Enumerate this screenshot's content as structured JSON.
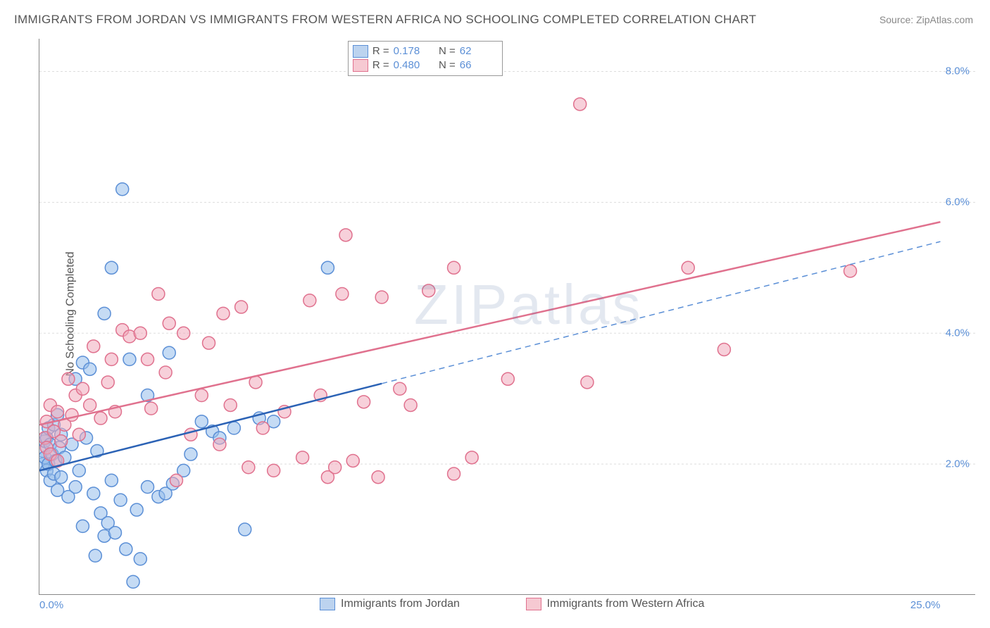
{
  "title": "IMMIGRANTS FROM JORDAN VS IMMIGRANTS FROM WESTERN AFRICA NO SCHOOLING COMPLETED CORRELATION CHART",
  "source_prefix": "Source: ",
  "source": "ZipAtlas.com",
  "ylabel": "No Schooling Completed",
  "watermark": "ZIPatlas",
  "chart": {
    "type": "scatter",
    "xlim": [
      0,
      25
    ],
    "ylim": [
      0,
      8.5
    ],
    "x_domain_coverage": 0.962,
    "xtick_values": [
      0,
      25
    ],
    "xtick_labels": [
      "0.0%",
      "25.0%"
    ],
    "ytick_values": [
      2,
      4,
      6,
      8
    ],
    "ytick_labels": [
      "2.0%",
      "4.0%",
      "6.0%",
      "8.0%"
    ],
    "grid_color": "#dddddd",
    "grid_dash": "3,3",
    "legend_top": {
      "rows": [
        {
          "swatch_fill": "#bcd3ef",
          "swatch_stroke": "#5b8fd6",
          "r_label": "R = ",
          "r_value": "0.178",
          "n_label": "N = ",
          "n_value": "62"
        },
        {
          "swatch_fill": "#f6c9d2",
          "swatch_stroke": "#e0718e",
          "r_label": "R = ",
          "r_value": "0.480",
          "n_label": "N = ",
          "n_value": "66"
        }
      ]
    },
    "legend_bottom": [
      {
        "swatch_fill": "#bcd3ef",
        "swatch_stroke": "#5b8fd6",
        "label": "Immigrants from Jordan"
      },
      {
        "swatch_fill": "#f6c9d2",
        "swatch_stroke": "#e0718e",
        "label": "Immigrants from Western Africa"
      }
    ],
    "series": [
      {
        "name": "jordan",
        "marker_fill": "rgba(150,190,235,0.55)",
        "marker_stroke": "#5b8fd6",
        "marker_radius": 9,
        "line_color": "#2b62b5",
        "line_dash_color": "#5b8fd6",
        "line_solid_xrange": [
          0,
          9.5
        ],
        "line_full_xrange": [
          0,
          25
        ],
        "line_y_at": {
          "x0": 0,
          "y0": 1.9,
          "x1": 25,
          "y1": 5.4
        },
        "points": [
          [
            0.1,
            2.2
          ],
          [
            0.1,
            2.0
          ],
          [
            0.15,
            2.35
          ],
          [
            0.15,
            2.1
          ],
          [
            0.2,
            1.9
          ],
          [
            0.2,
            2.4
          ],
          [
            0.25,
            2.0
          ],
          [
            0.25,
            2.55
          ],
          [
            0.3,
            1.75
          ],
          [
            0.3,
            2.3
          ],
          [
            0.35,
            2.15
          ],
          [
            0.4,
            1.85
          ],
          [
            0.4,
            2.6
          ],
          [
            0.45,
            2.05
          ],
          [
            0.5,
            2.75
          ],
          [
            0.5,
            1.6
          ],
          [
            0.55,
            2.25
          ],
          [
            0.6,
            2.45
          ],
          [
            0.6,
            1.8
          ],
          [
            0.7,
            2.1
          ],
          [
            0.8,
            1.5
          ],
          [
            0.9,
            2.3
          ],
          [
            1.0,
            3.3
          ],
          [
            1.0,
            1.65
          ],
          [
            1.1,
            1.9
          ],
          [
            1.2,
            3.55
          ],
          [
            1.2,
            1.05
          ],
          [
            1.3,
            2.4
          ],
          [
            1.4,
            3.45
          ],
          [
            1.5,
            1.55
          ],
          [
            1.55,
            0.6
          ],
          [
            1.6,
            2.2
          ],
          [
            1.7,
            1.25
          ],
          [
            1.8,
            0.9
          ],
          [
            1.8,
            4.3
          ],
          [
            1.9,
            1.1
          ],
          [
            2.0,
            5.0
          ],
          [
            2.0,
            1.75
          ],
          [
            2.1,
            0.95
          ],
          [
            2.25,
            1.45
          ],
          [
            2.3,
            6.2
          ],
          [
            2.4,
            0.7
          ],
          [
            2.5,
            3.6
          ],
          [
            2.7,
            1.3
          ],
          [
            2.8,
            0.55
          ],
          [
            3.0,
            1.65
          ],
          [
            3.0,
            3.05
          ],
          [
            3.3,
            1.5
          ],
          [
            3.5,
            1.55
          ],
          [
            3.6,
            3.7
          ],
          [
            3.7,
            1.7
          ],
          [
            4.0,
            1.9
          ],
          [
            4.2,
            2.15
          ],
          [
            4.5,
            2.65
          ],
          [
            4.8,
            2.5
          ],
          [
            5.0,
            2.4
          ],
          [
            5.4,
            2.55
          ],
          [
            5.7,
            1.0
          ],
          [
            6.1,
            2.7
          ],
          [
            6.5,
            2.65
          ],
          [
            8.0,
            5.0
          ],
          [
            2.6,
            0.2
          ]
        ]
      },
      {
        "name": "western_africa",
        "marker_fill": "rgba(240,170,188,0.55)",
        "marker_stroke": "#e0718e",
        "marker_radius": 9,
        "line_color": "#e0718e",
        "line_dash_color": "#e0718e",
        "line_solid_xrange": [
          0,
          25
        ],
        "line_full_xrange": [
          0,
          25
        ],
        "line_y_at": {
          "x0": 0,
          "y0": 2.6,
          "x1": 25,
          "y1": 5.7
        },
        "points": [
          [
            0.15,
            2.4
          ],
          [
            0.2,
            2.25
          ],
          [
            0.2,
            2.65
          ],
          [
            0.3,
            2.15
          ],
          [
            0.3,
            2.9
          ],
          [
            0.4,
            2.5
          ],
          [
            0.5,
            2.05
          ],
          [
            0.5,
            2.8
          ],
          [
            0.6,
            2.35
          ],
          [
            0.7,
            2.6
          ],
          [
            0.8,
            3.3
          ],
          [
            0.9,
            2.75
          ],
          [
            1.0,
            3.05
          ],
          [
            1.1,
            2.45
          ],
          [
            1.2,
            3.15
          ],
          [
            1.4,
            2.9
          ],
          [
            1.5,
            3.8
          ],
          [
            1.7,
            2.7
          ],
          [
            1.9,
            3.25
          ],
          [
            2.0,
            3.6
          ],
          [
            2.1,
            2.8
          ],
          [
            2.3,
            4.05
          ],
          [
            2.5,
            3.95
          ],
          [
            2.8,
            4.0
          ],
          [
            3.0,
            3.6
          ],
          [
            3.1,
            2.85
          ],
          [
            3.3,
            4.6
          ],
          [
            3.5,
            3.4
          ],
          [
            3.6,
            4.15
          ],
          [
            3.8,
            1.75
          ],
          [
            4.0,
            4.0
          ],
          [
            4.2,
            2.45
          ],
          [
            4.5,
            3.05
          ],
          [
            4.7,
            3.85
          ],
          [
            5.0,
            2.3
          ],
          [
            5.1,
            4.3
          ],
          [
            5.3,
            2.9
          ],
          [
            5.6,
            4.4
          ],
          [
            6.0,
            3.25
          ],
          [
            6.2,
            2.55
          ],
          [
            6.5,
            1.9
          ],
          [
            6.8,
            2.8
          ],
          [
            7.3,
            2.1
          ],
          [
            7.5,
            4.5
          ],
          [
            7.8,
            3.05
          ],
          [
            8.0,
            1.8
          ],
          [
            8.2,
            1.95
          ],
          [
            8.4,
            4.6
          ],
          [
            8.5,
            5.5
          ],
          [
            8.7,
            2.05
          ],
          [
            9.0,
            2.95
          ],
          [
            9.5,
            4.55
          ],
          [
            10.0,
            3.15
          ],
          [
            10.3,
            2.9
          ],
          [
            10.8,
            4.65
          ],
          [
            11.5,
            1.85
          ],
          [
            11.5,
            5.0
          ],
          [
            12.0,
            2.1
          ],
          [
            13.0,
            3.3
          ],
          [
            15.0,
            7.5
          ],
          [
            15.2,
            3.25
          ],
          [
            18.0,
            5.0
          ],
          [
            19.0,
            3.75
          ],
          [
            22.5,
            4.95
          ],
          [
            5.8,
            1.95
          ],
          [
            9.4,
            1.8
          ]
        ]
      }
    ]
  }
}
